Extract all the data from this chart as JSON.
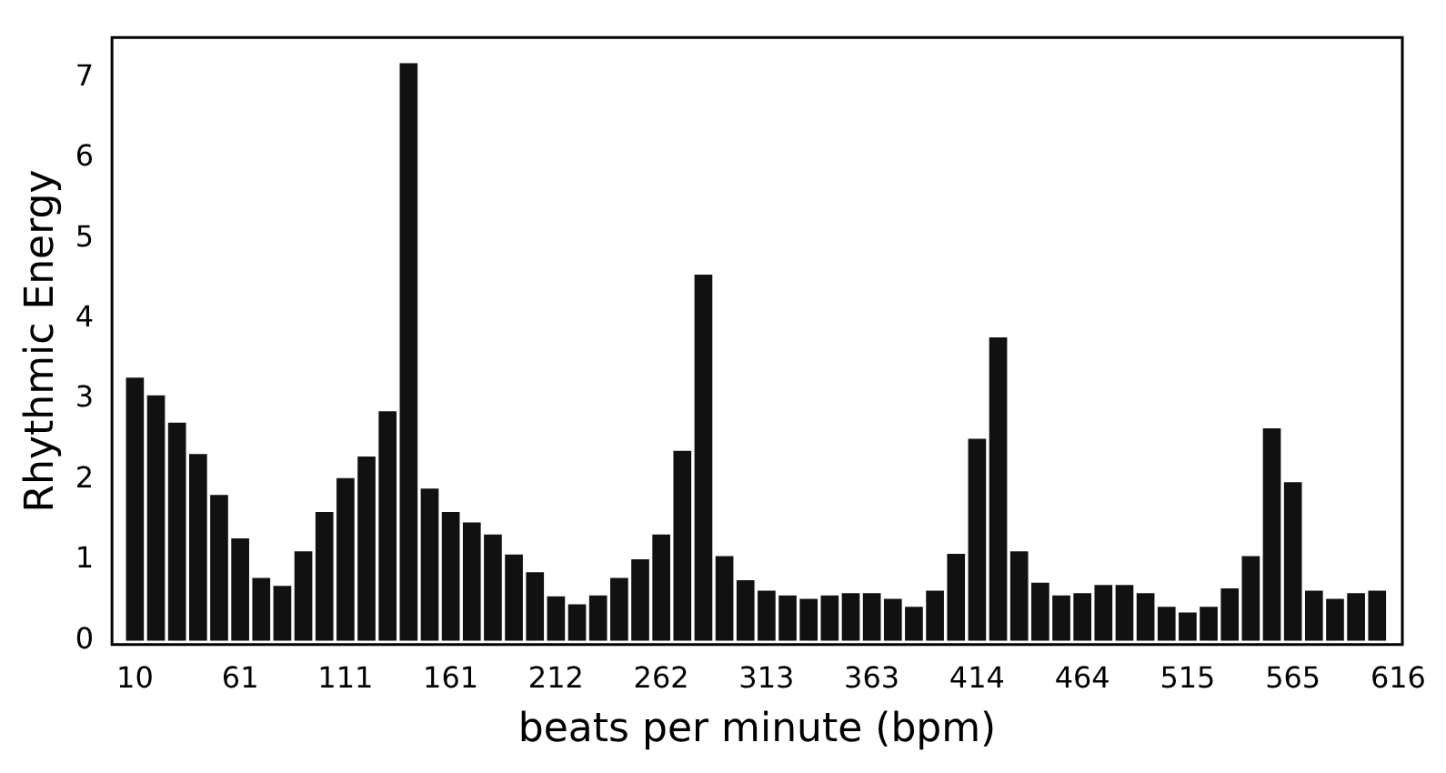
{
  "chart_data": {
    "type": "bar",
    "xlabel": "beats per minute (bpm)",
    "ylabel": "Rhythmic Energy",
    "x": [
      10,
      20.1,
      30.2,
      40.3,
      50.4,
      60.5,
      70.6,
      80.7,
      90.8,
      100.9,
      111,
      121.1,
      131.2,
      141.3,
      151.4,
      161.5,
      171.6,
      181.7,
      191.8,
      201.9,
      212,
      222.1,
      232.2,
      242.3,
      252.4,
      262.5,
      272.6,
      282.7,
      292.8,
      302.9,
      313,
      323.1,
      333.2,
      343.3,
      353.4,
      363.5,
      373.6,
      383.7,
      393.8,
      403.9,
      414,
      424.1,
      434.2,
      444.3,
      454.4,
      464.5,
      474.6,
      484.7,
      494.8,
      504.9,
      515,
      525.1,
      535.2,
      545.3,
      555.4,
      565.5,
      575.6,
      585.7,
      595.8,
      605.9
    ],
    "values": [
      3.27,
      3.05,
      2.71,
      2.32,
      1.81,
      1.27,
      0.78,
      0.68,
      1.11,
      1.6,
      2.02,
      2.29,
      2.85,
      7.18,
      1.89,
      1.6,
      1.47,
      1.32,
      1.07,
      0.85,
      0.55,
      0.45,
      0.56,
      0.78,
      1.01,
      1.32,
      2.36,
      4.55,
      1.05,
      0.75,
      0.62,
      0.56,
      0.52,
      0.56,
      0.59,
      0.59,
      0.52,
      0.42,
      0.62,
      1.08,
      2.51,
      3.77,
      1.11,
      0.72,
      0.56,
      0.59,
      0.69,
      0.69,
      0.59,
      0.42,
      0.35,
      0.42,
      0.65,
      1.05,
      2.64,
      1.97,
      0.62,
      0.52,
      0.59,
      0.62
    ],
    "color": "#111111",
    "xlim": [
      -1,
      618
    ],
    "xticks": [
      10,
      {
        "value": 60.5,
        "label": "61"
      },
      111,
      {
        "value": 161.5,
        "label": "161"
      },
      212,
      {
        "value": 262.5,
        "label": "262"
      },
      313,
      {
        "value": 363.5,
        "label": "363"
      },
      414,
      {
        "value": 464.5,
        "label": "464"
      },
      515,
      {
        "value": 565.5,
        "label": "565"
      },
      616
    ],
    "ylim": [
      -0.05,
      7.5
    ],
    "yticks": [
      0,
      1,
      2,
      3,
      4,
      5,
      6,
      7
    ],
    "grid": false,
    "legend": false
  }
}
